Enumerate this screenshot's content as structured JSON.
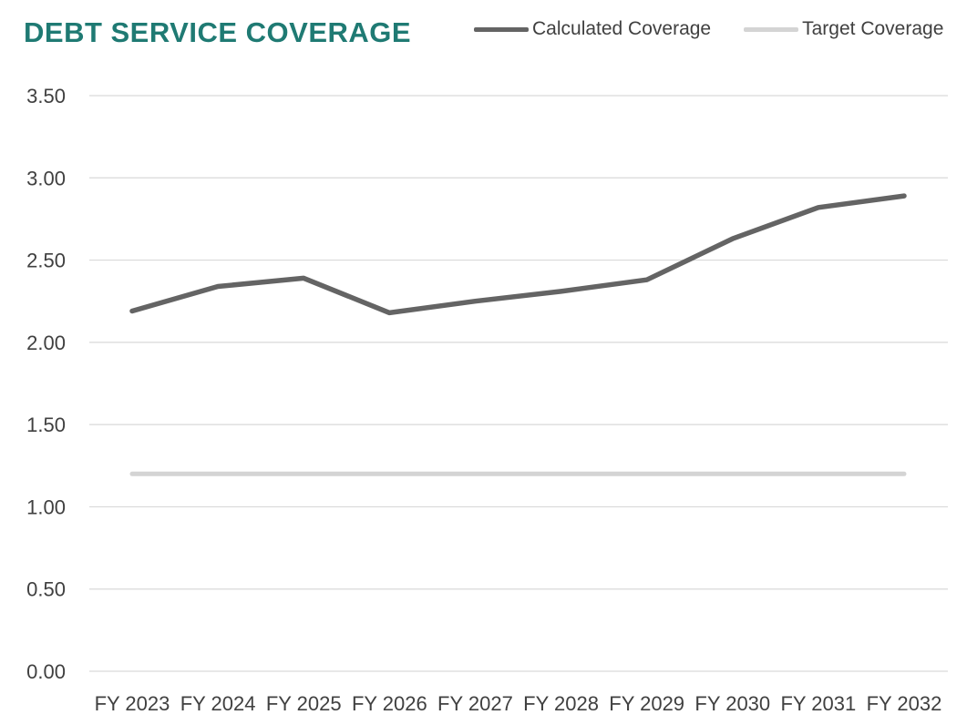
{
  "chart_data": {
    "type": "line",
    "title": "DEBT SERVICE COVERAGE",
    "categories": [
      "FY 2023",
      "FY 2024",
      "FY 2025",
      "FY 2026",
      "FY 2027",
      "FY 2028",
      "FY 2029",
      "FY 2030",
      "FY 2031",
      "FY 2032"
    ],
    "series": [
      {
        "name": "Calculated Coverage",
        "values": [
          2.19,
          2.34,
          2.39,
          2.18,
          2.25,
          2.31,
          2.38,
          2.63,
          2.82,
          2.89
        ],
        "color": "#646464"
      },
      {
        "name": "Target Coverage",
        "values": [
          1.2,
          1.2,
          1.2,
          1.2,
          1.2,
          1.2,
          1.2,
          1.2,
          1.2,
          1.2
        ],
        "color": "#d4d4d4"
      }
    ],
    "yticks": [
      "0.00",
      "0.50",
      "1.00",
      "1.50",
      "2.00",
      "2.50",
      "3.00",
      "3.50"
    ],
    "ylim": [
      0,
      3.5
    ],
    "xlabel": "",
    "ylabel": "",
    "grid": true,
    "legend_position": "top-right"
  }
}
